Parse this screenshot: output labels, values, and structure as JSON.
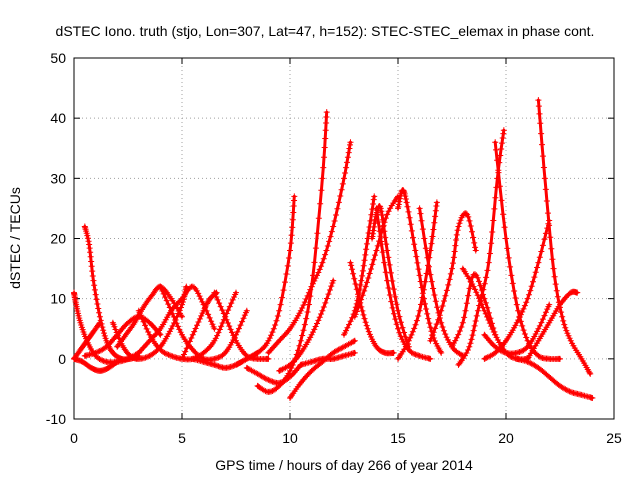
{
  "chart_data": {
    "type": "scatter",
    "title": "dSTEC Iono. truth (stjo, Lon=307, Lat=47, h=152): STEC-STEC_elemax in phase cont.",
    "xlabel": "GPS time / hours of day 266 of year 2014",
    "ylabel": "dSTEC  / TECUs",
    "xlim": [
      0,
      25
    ],
    "ylim": [
      -10,
      50
    ],
    "xticks": [
      0,
      5,
      10,
      15,
      20,
      25
    ],
    "yticks": [
      -10,
      0,
      10,
      20,
      30,
      40,
      50
    ],
    "grid": true,
    "marker": "+",
    "color": "#ff0000",
    "series": [
      {
        "x": [
          0.0,
          0.1,
          0.3,
          0.6,
          1.0,
          1.5,
          2.0,
          2.5,
          3.0
        ],
        "y": [
          11,
          9,
          6,
          3,
          0.5,
          -0.5,
          -0.5,
          0,
          1
        ]
      },
      {
        "x": [
          0.0,
          0.3,
          0.6,
          0.9,
          1.2
        ],
        "y": [
          0,
          1.5,
          3,
          4.5,
          6
        ]
      },
      {
        "x": [
          0.0,
          0.4,
          0.8,
          1.2,
          1.6,
          2.0
        ],
        "y": [
          0,
          -0.5,
          -1.5,
          -2,
          -1.5,
          -0.5
        ]
      },
      {
        "x": [
          0.5,
          0.7,
          0.9,
          1.2,
          1.5,
          1.8,
          2.2,
          2.6,
          3.0
        ],
        "y": [
          22,
          19,
          13,
          7,
          3,
          1,
          0,
          0,
          0.5
        ]
      },
      {
        "x": [
          0.5,
          1.0,
          1.5,
          2.0,
          2.5,
          3.0,
          3.5,
          4.0
        ],
        "y": [
          0.5,
          1,
          2,
          4,
          6,
          7,
          6,
          4
        ]
      },
      {
        "x": [
          1.8,
          2.2,
          2.6,
          3.0,
          3.5,
          4.0,
          4.5,
          5.0,
          5.2
        ],
        "y": [
          6,
          2.5,
          0.5,
          0,
          0.5,
          2,
          5,
          9,
          12
        ]
      },
      {
        "x": [
          2.0,
          2.4,
          2.8,
          3.2,
          3.6,
          4.0,
          4.5,
          5.0
        ],
        "y": [
          2,
          4,
          6,
          8.5,
          10.5,
          12,
          10,
          7
        ]
      },
      {
        "x": [
          3.0,
          3.5,
          4.0,
          4.5,
          5.0,
          5.5,
          6.0,
          6.5
        ],
        "y": [
          1,
          3,
          5,
          8,
          10,
          12,
          9,
          5
        ]
      },
      {
        "x": [
          3.0,
          3.5,
          4.0,
          4.5,
          5.0,
          5.5,
          6.0,
          6.5,
          7.0,
          7.5
        ],
        "y": [
          8,
          4,
          1.5,
          0.5,
          0,
          0,
          1,
          3,
          7,
          11
        ]
      },
      {
        "x": [
          4.0,
          4.5,
          5.0,
          5.5,
          6.0,
          6.5,
          7.0,
          7.5,
          8.0
        ],
        "y": [
          12,
          8,
          4,
          1.5,
          0,
          0,
          1,
          4,
          8
        ]
      },
      {
        "x": [
          5.0,
          5.5,
          6.0,
          6.3,
          6.6
        ],
        "y": [
          0,
          4,
          8,
          10,
          11
        ]
      },
      {
        "x": [
          5.5,
          6.0,
          6.5,
          7.0,
          7.5,
          8.0,
          8.5
        ],
        "y": [
          0,
          -0.5,
          -1,
          -1.5,
          -1,
          0,
          1
        ]
      },
      {
        "x": [
          6.5,
          7.0,
          7.5,
          8.0,
          8.5,
          9.0
        ],
        "y": [
          11,
          7,
          3,
          0.5,
          0,
          0
        ]
      },
      {
        "x": [
          7.5,
          8.0,
          8.5,
          9.0,
          9.5,
          10.0,
          10.2
        ],
        "y": [
          -1,
          0,
          1,
          3,
          8,
          18,
          27
        ]
      },
      {
        "x": [
          8.0,
          8.5,
          9.0,
          9.5,
          10.0,
          10.5
        ],
        "y": [
          -1.5,
          -2.5,
          -3.5,
          -4,
          -3,
          -1
        ]
      },
      {
        "x": [
          8.5,
          9.0,
          9.5,
          10.0,
          10.5,
          11.0,
          11.5,
          11.7
        ],
        "y": [
          -4.5,
          -5.5,
          -4.5,
          -2,
          3,
          12,
          30,
          41
        ]
      },
      {
        "x": [
          9.0,
          9.5,
          10.0,
          10.5,
          11.0,
          11.5,
          12.0,
          12.5,
          12.8
        ],
        "y": [
          1,
          3,
          5,
          8,
          12,
          16,
          22,
          30,
          36
        ]
      },
      {
        "x": [
          9.5,
          10.0,
          10.5,
          11.0,
          11.5,
          12.0
        ],
        "y": [
          -2,
          -1,
          1,
          4,
          8,
          13
        ]
      },
      {
        "x": [
          10.0,
          10.5,
          11.0,
          11.5,
          12.0,
          12.5,
          13.0
        ],
        "y": [
          -6.5,
          -4,
          -2,
          -0.5,
          1,
          2,
          3
        ]
      },
      {
        "x": [
          10.5,
          11.0,
          11.5,
          12.0,
          12.5,
          13.0
        ],
        "y": [
          -1,
          -0.5,
          0,
          0,
          0.5,
          1
        ]
      },
      {
        "x": [
          12.5,
          13.0,
          13.3,
          13.6,
          13.9
        ],
        "y": [
          4,
          8,
          13,
          20,
          27
        ]
      },
      {
        "x": [
          12.8,
          13.2,
          13.6,
          14.0,
          14.4,
          14.8
        ],
        "y": [
          16,
          10,
          5,
          2,
          1,
          1
        ]
      },
      {
        "x": [
          13.0,
          13.5,
          14.0,
          14.5,
          15.0
        ],
        "y": [
          7,
          12,
          18,
          24,
          27
        ]
      },
      {
        "x": [
          13.8,
          14.0,
          14.2,
          14.5,
          15.0,
          15.5
        ],
        "y": [
          20,
          24,
          25,
          18,
          8,
          2
        ]
      },
      {
        "x": [
          14.0,
          14.5,
          15.0,
          15.5,
          16.0,
          16.5
        ],
        "y": [
          25,
          13,
          5,
          1.5,
          0.5,
          0
        ]
      },
      {
        "x": [
          15.0,
          15.2,
          15.4,
          15.8,
          16.2,
          16.6,
          17.0
        ],
        "y": [
          25,
          28,
          26,
          18,
          10,
          4,
          1
        ]
      },
      {
        "x": [
          15.0,
          15.5,
          16.0,
          16.5,
          16.8
        ],
        "y": [
          0,
          3,
          8,
          18,
          26
        ]
      },
      {
        "x": [
          16.0,
          16.5,
          17.0,
          17.5,
          18.0
        ],
        "y": [
          25,
          14,
          6,
          2,
          0.5
        ]
      },
      {
        "x": [
          16.5,
          17.0,
          17.5,
          17.8,
          18.2,
          18.6
        ],
        "y": [
          3,
          8,
          15,
          22,
          24,
          18
        ]
      },
      {
        "x": [
          17.5,
          18.0,
          18.5,
          19.0,
          19.5
        ],
        "y": [
          2,
          6,
          14,
          10,
          4
        ]
      },
      {
        "x": [
          17.8,
          18.3,
          18.7,
          19.2,
          19.6,
          19.9
        ],
        "y": [
          -1,
          2,
          8,
          16,
          30,
          38
        ]
      },
      {
        "x": [
          18.0,
          18.5,
          19.0,
          19.5,
          20.0,
          20.5,
          21.0
        ],
        "y": [
          15,
          12,
          8,
          4,
          1,
          0,
          0
        ]
      },
      {
        "x": [
          19.5,
          20.0,
          20.5,
          21.0,
          21.5,
          22.0,
          22.5
        ],
        "y": [
          36,
          20,
          9,
          3,
          0.5,
          0,
          0
        ]
      },
      {
        "x": [
          19.0,
          19.5,
          20.0,
          20.5,
          21.0,
          21.5,
          22.0
        ],
        "y": [
          0,
          1,
          3,
          6,
          10,
          16,
          23
        ]
      },
      {
        "x": [
          21.5,
          21.8,
          22.2,
          22.6,
          23.0,
          23.5,
          23.9
        ],
        "y": [
          43,
          30,
          15,
          7,
          3,
          0,
          -2.5
        ]
      },
      {
        "x": [
          21.0,
          21.5,
          22.0,
          22.5,
          23.0,
          23.3
        ],
        "y": [
          0,
          3,
          6,
          9,
          11,
          11
        ]
      },
      {
        "x": [
          20.5,
          21.0,
          21.5,
          22.0,
          22.5,
          23.0,
          23.5,
          24.0
        ],
        "y": [
          0,
          -0.5,
          -1.5,
          -3,
          -4.5,
          -5.5,
          -6,
          -6.5
        ]
      },
      {
        "x": [
          19.0,
          19.5,
          20.0,
          20.5,
          21.0,
          21.5,
          22.0
        ],
        "y": [
          4,
          2,
          1,
          1,
          2,
          5,
          9
        ]
      }
    ]
  }
}
